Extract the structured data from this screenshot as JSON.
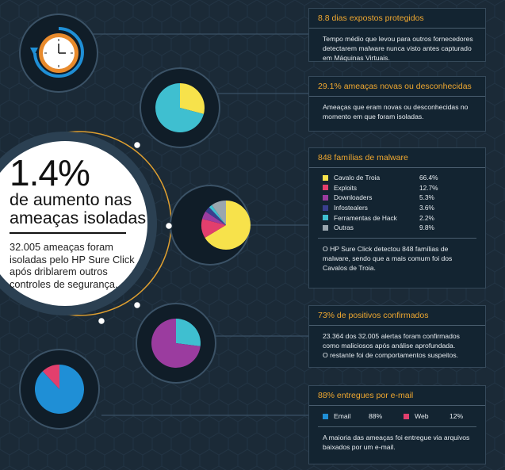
{
  "colors": {
    "background": "#1b2a37",
    "accent_orange": "#f0a830",
    "line": "#3b5266",
    "cyan": "#3fbfd0",
    "yellow": "#f7e24b",
    "pink": "#e23f6d",
    "purple": "#9b3c9f",
    "indigo": "#3a3f8f",
    "blue": "#1f8fd6",
    "grey": "#9aa6ae"
  },
  "headline": {
    "number": "1.4%",
    "line1": "de aumento nas",
    "line2": "ameaças isoladas",
    "description": "32.005 ameaças foram isoladas pelo HP Sure Click após driblarem outros controles de segurança."
  },
  "icons": {
    "clock": "clock-icon"
  },
  "panels": {
    "dias": {
      "title": "8.8 dias expostos protegidos",
      "text": "Tempo médio que levou para outros fornecedores detectarem malware nunca visto antes capturado em Máquinas Virtuais."
    },
    "novas": {
      "title": "29.1% ameaças novas ou desconhecidas",
      "text": "Ameaças que eram novas ou desconhecidas no momento em que foram isoladas.",
      "value": 29.1
    },
    "familias": {
      "title": "848 famílias de malware",
      "legend": [
        {
          "label": "Cavalo de Troia",
          "pct": "66.4%",
          "value": 66.4,
          "color": "#f7e24b"
        },
        {
          "label": "Exploits",
          "pct": "12.7%",
          "value": 12.7,
          "color": "#e23f6d"
        },
        {
          "label": "Downloaders",
          "pct": "5.3%",
          "value": 5.3,
          "color": "#9b3c9f"
        },
        {
          "label": "Infostealers",
          "pct": "3.6%",
          "value": 3.6,
          "color": "#3a3f8f"
        },
        {
          "label": "Ferramentas de Hack",
          "pct": "2.2%",
          "value": 2.2,
          "color": "#3fbfd0"
        },
        {
          "label": "Outras",
          "pct": "9.8%",
          "value": 9.8,
          "color": "#9aa6ae"
        }
      ],
      "text": "O HP Sure Click detectou 848 famílias de malware, sendo que a mais comum foi dos Cavalos de Troia."
    },
    "positivos": {
      "title": "73% de positivos confirmados",
      "text1": "23.364 dos 32.005 alertas foram confirmados como maliciosos após análise aprofundada.",
      "text2": "O restante foi de comportamentos suspeitos.",
      "value": 73
    },
    "email": {
      "title": "88% entregues por e-mail",
      "email_label": "Email",
      "email_pct": "88%",
      "email_value": 88,
      "web_label": "Web",
      "web_pct": "12%",
      "web_value": 12,
      "text": "A maioria das ameaças foi entregue via arquivos baixados por um e-mail."
    }
  }
}
